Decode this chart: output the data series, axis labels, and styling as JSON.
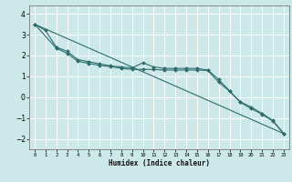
{
  "title": "",
  "xlabel": "Humidex (Indice chaleur)",
  "ylabel": "",
  "bg_color": "#cde8e8",
  "grid_color": "#ffffff",
  "line_color": "#2d6b6b",
  "xmin": -0.5,
  "xmax": 23.5,
  "ymin": -2.5,
  "ymax": 4.4,
  "x_ticks": [
    0,
    1,
    2,
    3,
    4,
    5,
    6,
    7,
    8,
    9,
    10,
    11,
    12,
    13,
    14,
    15,
    16,
    17,
    18,
    19,
    20,
    21,
    22,
    23
  ],
  "y_ticks": [
    -2,
    -1,
    0,
    1,
    2,
    3,
    4
  ],
  "line1_x": [
    0,
    1,
    2,
    3,
    4,
    5,
    6,
    7,
    8,
    9,
    10,
    11,
    12,
    13,
    14,
    15,
    16,
    17,
    18,
    19,
    20,
    21,
    22,
    23
  ],
  "line1_y": [
    3.5,
    3.2,
    2.4,
    2.2,
    1.8,
    1.7,
    1.6,
    1.5,
    1.45,
    1.4,
    1.65,
    1.45,
    1.38,
    1.38,
    1.38,
    1.38,
    1.3,
    0.85,
    0.3,
    -0.25,
    -0.55,
    -0.82,
    -1.15,
    -1.75
  ],
  "line2_x": [
    0,
    2,
    3,
    4,
    5,
    6,
    7,
    8,
    9,
    10,
    11,
    12,
    13,
    14,
    15,
    16,
    17,
    18,
    19,
    20,
    21,
    22,
    23
  ],
  "line2_y": [
    3.5,
    2.35,
    2.1,
    1.72,
    1.62,
    1.52,
    1.47,
    1.38,
    1.33,
    1.33,
    1.33,
    1.3,
    1.3,
    1.3,
    1.3,
    1.28,
    0.72,
    0.28,
    -0.22,
    -0.48,
    -0.78,
    -1.12,
    -1.75
  ],
  "line3_x": [
    0,
    23
  ],
  "line3_y": [
    3.5,
    -1.75
  ]
}
